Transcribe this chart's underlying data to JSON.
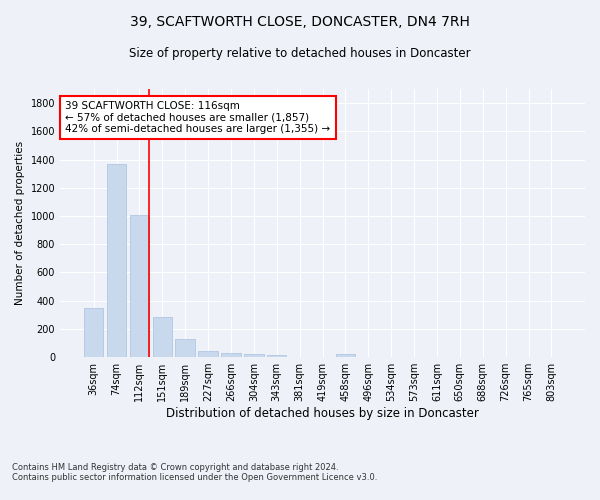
{
  "title": "39, SCAFTWORTH CLOSE, DONCASTER, DN4 7RH",
  "subtitle": "Size of property relative to detached houses in Doncaster",
  "xlabel": "Distribution of detached houses by size in Doncaster",
  "ylabel": "Number of detached properties",
  "footnote1": "Contains HM Land Registry data © Crown copyright and database right 2024.",
  "footnote2": "Contains public sector information licensed under the Open Government Licence v3.0.",
  "bar_color": "#c8d9ee",
  "bar_edge_color": "#a8c0de",
  "vline_color": "red",
  "annotation_text": "39 SCAFTWORTH CLOSE: 116sqm\n← 57% of detached houses are smaller (1,857)\n42% of semi-detached houses are larger (1,355) →",
  "annotation_box_color": "white",
  "annotation_border_color": "red",
  "categories": [
    "36sqm",
    "74sqm",
    "112sqm",
    "151sqm",
    "189sqm",
    "227sqm",
    "266sqm",
    "304sqm",
    "343sqm",
    "381sqm",
    "419sqm",
    "458sqm",
    "496sqm",
    "534sqm",
    "573sqm",
    "611sqm",
    "650sqm",
    "688sqm",
    "726sqm",
    "765sqm",
    "803sqm"
  ],
  "values": [
    350,
    1370,
    1010,
    285,
    125,
    42,
    32,
    22,
    15,
    0,
    0,
    25,
    0,
    0,
    0,
    0,
    0,
    0,
    0,
    0,
    0
  ],
  "ylim": [
    0,
    1900
  ],
  "yticks": [
    0,
    200,
    400,
    600,
    800,
    1000,
    1200,
    1400,
    1600,
    1800
  ],
  "background_color": "#eef2f8",
  "plot_bg_color": "#eef2f8",
  "grid_color": "#ffffff",
  "title_fontsize": 10,
  "subtitle_fontsize": 8.5,
  "ylabel_fontsize": 7.5,
  "xlabel_fontsize": 8.5,
  "tick_fontsize": 7,
  "annot_fontsize": 7.5,
  "footnote_fontsize": 6
}
